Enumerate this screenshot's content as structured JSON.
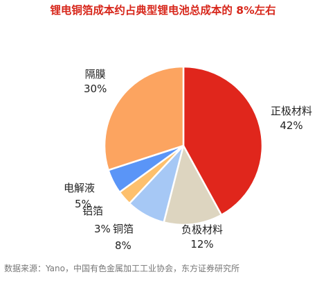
{
  "chart_data": {
    "type": "pie",
    "title": "锂电铜箔成本约占典型锂电池总成本的 8%左右",
    "slices": [
      {
        "label": "正极材料",
        "value": 42,
        "value_label": "42%",
        "color": "#e0261c"
      },
      {
        "label": "负极材料",
        "value": 12,
        "value_label": "12%",
        "color": "#ddd5c0"
      },
      {
        "label": "铜箔",
        "value": 8,
        "value_label": "8%",
        "color": "#a6c8f5"
      },
      {
        "label": "铝箔",
        "value": 3,
        "value_label": "3%",
        "color": "#fdc06d"
      },
      {
        "label": "电解液",
        "value": 5,
        "value_label": "5%",
        "color": "#5a95f7"
      },
      {
        "label": "隔膜",
        "value": 30,
        "value_label": "30%",
        "color": "#fca460"
      }
    ],
    "legend": "none"
  },
  "source_note": "数据来源：Yano，中国有色金属加工工业协会，东方证券研究所"
}
